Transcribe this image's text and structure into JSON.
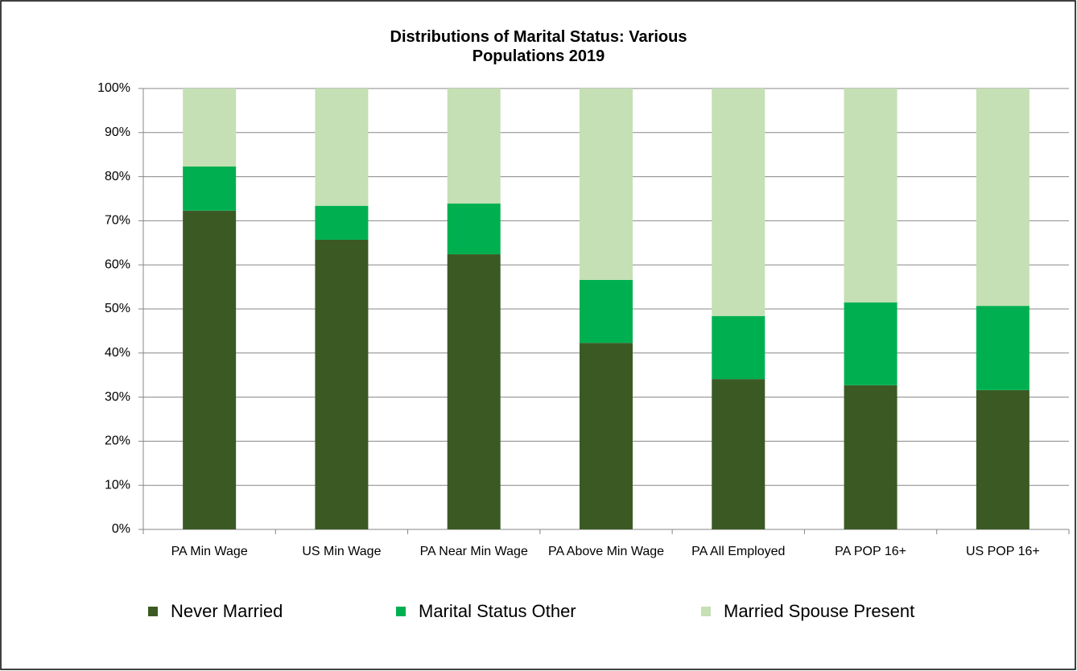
{
  "chart_data": {
    "type": "stacked_bar",
    "title": "Distributions of Marital Status: Various Populations 2019",
    "categories": [
      "PA Min Wage",
      "US Min Wage",
      "PA Near Min Wage",
      "PA Above Min Wage",
      "PA All Employed",
      "PA POP 16+",
      "US POP 16+"
    ],
    "series": [
      {
        "name": "Never Married",
        "color": "#3b5a23",
        "values": [
          72.3,
          65.7,
          62.4,
          42.3,
          34.1,
          32.7,
          31.6
        ]
      },
      {
        "name": "Marital Status Other",
        "color": "#00b050",
        "values": [
          10.0,
          7.7,
          11.5,
          14.3,
          14.3,
          18.8,
          19.1
        ]
      },
      {
        "name": "Married Spouse Present",
        "color": "#c4e0b4",
        "values": [
          17.7,
          26.6,
          26.1,
          43.4,
          51.6,
          48.5,
          49.3
        ]
      }
    ],
    "ylim": [
      0,
      100
    ],
    "yticks": [
      {
        "value": 0,
        "label": "0%"
      },
      {
        "value": 10,
        "label": "10%"
      },
      {
        "value": 20,
        "label": "20%"
      },
      {
        "value": 30,
        "label": "30%"
      },
      {
        "value": 40,
        "label": "40%"
      },
      {
        "value": 50,
        "label": "50%"
      },
      {
        "value": 60,
        "label": "60%"
      },
      {
        "value": 70,
        "label": "70%"
      },
      {
        "value": 80,
        "label": "80%"
      },
      {
        "value": 90,
        "label": "90%"
      },
      {
        "value": 100,
        "label": "100%"
      }
    ],
    "grid": true,
    "legend": "bottom"
  }
}
